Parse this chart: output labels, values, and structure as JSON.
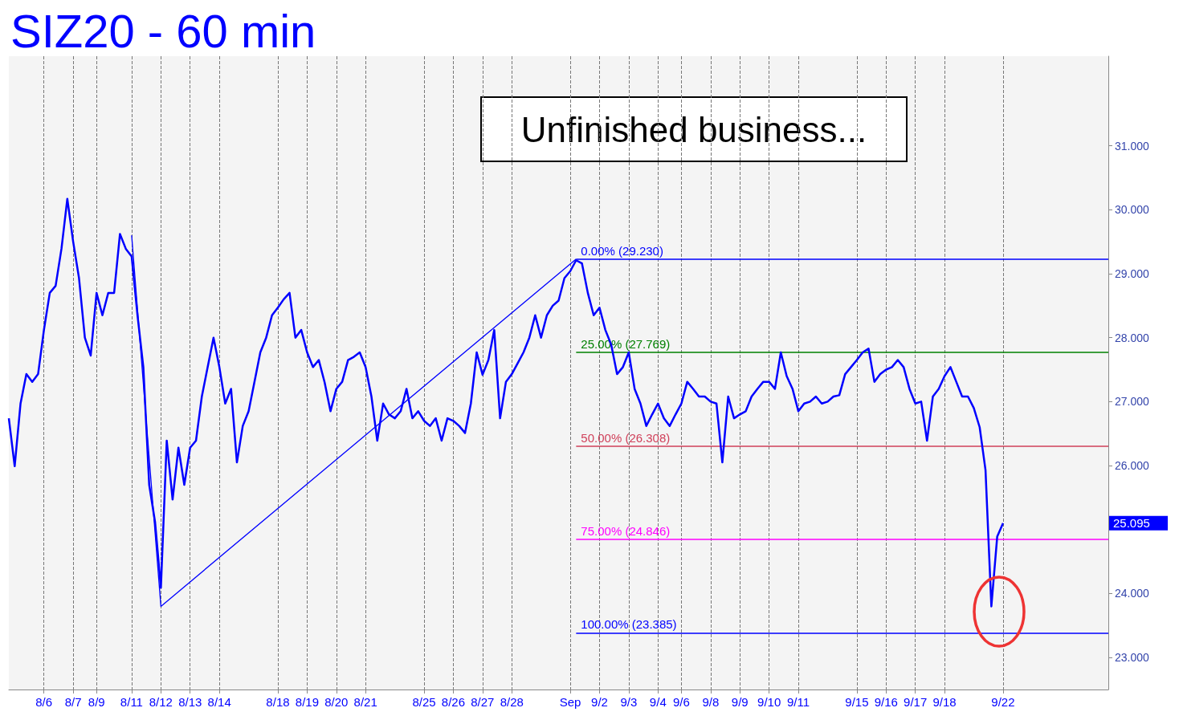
{
  "chart_data": {
    "type": "line",
    "title": "SIZ20 - 60 min",
    "annotations": [
      "Unfinished business...",
      "25.095"
    ],
    "marker": "none",
    "grid": "x",
    "ylim": [
      22.5,
      32.4
    ],
    "yticks": [
      {
        "value": 23,
        "label": "23.000"
      },
      {
        "value": 24,
        "label": "24.000"
      },
      {
        "value": 26,
        "label": "26.000"
      },
      {
        "value": 27,
        "label": "27.000"
      },
      {
        "value": 28,
        "label": "28.000"
      },
      {
        "value": 29,
        "label": "29.000"
      },
      {
        "value": 30,
        "label": "30.000"
      },
      {
        "value": 31,
        "label": "31.000"
      }
    ],
    "categories": [
      null,
      null,
      null,
      null,
      null,
      null,
      "8/6",
      null,
      null,
      null,
      null,
      "8/7",
      null,
      null,
      null,
      "8/9",
      null,
      null,
      null,
      null,
      null,
      "8/11",
      null,
      null,
      null,
      null,
      "8/12",
      null,
      null,
      null,
      null,
      "8/13",
      null,
      null,
      null,
      null,
      "8/14",
      null,
      null,
      null,
      null,
      null,
      null,
      null,
      null,
      null,
      "8/18",
      null,
      null,
      null,
      null,
      "8/19",
      null,
      null,
      null,
      null,
      "8/20",
      null,
      null,
      null,
      null,
      "8/21",
      null,
      null,
      null,
      null,
      null,
      null,
      null,
      null,
      null,
      "8/25",
      null,
      null,
      null,
      null,
      "8/26",
      null,
      null,
      null,
      null,
      "8/27",
      null,
      null,
      null,
      null,
      "8/28",
      null,
      null,
      null,
      null,
      null,
      null,
      null,
      null,
      null,
      "Sep",
      null,
      null,
      null,
      null,
      "9/2",
      null,
      null,
      null,
      null,
      "9/3",
      null,
      null,
      null,
      null,
      "9/4",
      null,
      null,
      null,
      "9/6",
      null,
      null,
      null,
      null,
      "9/8",
      null,
      null,
      null,
      null,
      "9/9",
      null,
      null,
      null,
      null,
      "9/10",
      null,
      null,
      null,
      null,
      "9/11",
      null,
      null,
      null,
      null,
      null,
      null,
      null,
      null,
      null,
      "9/15",
      null,
      null,
      null,
      null,
      "9/16",
      null,
      null,
      null,
      null,
      "9/17",
      null,
      null,
      null,
      null,
      "9/18",
      null,
      null,
      null,
      null,
      null,
      null,
      null,
      null,
      null,
      "9/22",
      null,
      null,
      null,
      null,
      null,
      null,
      null,
      null,
      null,
      null,
      null,
      null,
      null,
      null,
      null,
      null,
      null,
      null
    ],
    "series": [
      {
        "color": "#0000ff",
        "values": [
          26.74,
          25.99,
          26.97,
          27.43,
          27.31,
          27.43,
          28.12,
          28.7,
          28.81,
          29.39,
          30.17,
          29.5,
          28.93,
          28.0,
          27.72,
          28.7,
          28.35,
          28.7,
          28.7,
          29.62,
          29.39,
          29.27,
          28.35,
          27.54,
          25.7,
          25.12,
          24.09,
          26.39,
          25.47,
          26.28,
          25.7,
          26.28,
          26.39,
          27.08,
          27.54,
          28.0,
          27.54,
          26.97,
          27.2,
          26.05,
          26.62,
          26.85,
          27.31,
          27.77,
          28.0,
          28.35,
          28.47,
          28.6,
          28.7,
          28.0,
          28.12,
          27.77,
          27.54,
          27.65,
          27.3,
          26.85,
          27.2,
          27.31,
          27.65,
          27.7,
          27.77,
          27.54,
          27.08,
          26.39,
          26.97,
          26.8,
          26.74,
          26.85,
          27.2,
          26.74,
          26.85,
          26.7,
          26.62,
          26.74,
          26.39,
          26.74,
          26.7,
          26.62,
          26.51,
          26.97,
          27.77,
          27.42,
          27.65,
          28.12,
          26.74,
          27.31,
          27.43,
          27.6,
          27.77,
          28.0,
          28.35,
          28.0,
          28.35,
          28.5,
          28.58,
          28.93,
          29.04,
          29.21,
          29.16,
          28.7,
          28.35,
          28.47,
          28.12,
          27.89,
          27.43,
          27.54,
          27.77,
          27.2,
          26.97,
          26.62,
          26.8,
          26.97,
          26.74,
          26.62,
          26.8,
          26.97,
          27.31,
          27.2,
          27.08,
          27.08,
          27.0,
          26.97,
          26.05,
          27.08,
          26.74,
          26.8,
          26.85,
          27.08,
          27.2,
          27.31,
          27.31,
          27.2,
          27.77,
          27.4,
          27.2,
          26.85,
          26.97,
          27.0,
          27.08,
          26.97,
          27.0,
          27.08,
          27.1,
          27.43,
          27.54,
          27.65,
          27.77,
          27.83,
          27.31,
          27.43,
          27.5,
          27.54,
          27.65,
          27.54,
          27.2,
          26.97,
          27.0,
          26.39,
          27.08,
          27.2,
          27.4,
          27.54,
          27.31,
          27.08,
          27.08,
          26.9,
          26.6,
          25.93,
          23.8,
          24.89,
          25.1,
          null,
          null,
          null,
          null,
          null,
          null,
          null,
          null,
          null,
          null,
          null,
          null,
          null,
          null,
          null,
          null,
          null,
          null
        ]
      },
      {
        "color": "#0000ff",
        "values": [
          null,
          null,
          null,
          null,
          null,
          null,
          null,
          null,
          null,
          null,
          null,
          null,
          null,
          null,
          null,
          null,
          null,
          null,
          null,
          null,
          null,
          29.6,
          null,
          null,
          null,
          null,
          23.8,
          null,
          null,
          null,
          null,
          null,
          null,
          null,
          null,
          null,
          null,
          null,
          null,
          null,
          null,
          null,
          null,
          null,
          null,
          null,
          null,
          null,
          null,
          null,
          null,
          null,
          null,
          null,
          null,
          null,
          null,
          null,
          null,
          null,
          null,
          null,
          null,
          null,
          null,
          null,
          null,
          null,
          null,
          null,
          null,
          null,
          null,
          null,
          null,
          null,
          null,
          null,
          null,
          null,
          null,
          null,
          null,
          null,
          null,
          null,
          null,
          null,
          null,
          null,
          null,
          null,
          null,
          null,
          null,
          null,
          null,
          29.23,
          null,
          null,
          null,
          null,
          null,
          null,
          null,
          null,
          null,
          null,
          null,
          null,
          null,
          null,
          null,
          null,
          null,
          null,
          null,
          null,
          null,
          null,
          null,
          null,
          null,
          null,
          null,
          null,
          null,
          null,
          null,
          null,
          null,
          null,
          null,
          null,
          null,
          null,
          null,
          null,
          null,
          null,
          null,
          null,
          null,
          null,
          null,
          null,
          null,
          null,
          null,
          null,
          null,
          null,
          null,
          null,
          null,
          null,
          null,
          null,
          null,
          null,
          null,
          null,
          null,
          null,
          null,
          null,
          null,
          null,
          null,
          null,
          null,
          null,
          null,
          null,
          null,
          null,
          null,
          null,
          null,
          null,
          null,
          null,
          null,
          null,
          null,
          null,
          null,
          null,
          null
        ]
      }
    ],
    "ref_lines": [
      {
        "axis": "y",
        "value": 29.23,
        "label": "0.00% (29.230)",
        "color": "#0000ff"
      },
      {
        "axis": "y",
        "value": 27.769,
        "label": "25.00% (27.769)",
        "color": "#008000"
      },
      {
        "axis": "y",
        "value": 26.308,
        "label": "50.00% (26.308)",
        "color": "#d0405a"
      },
      {
        "axis": "y",
        "value": 24.846,
        "label": "75.00% (24.846)",
        "color": "#ff00ff"
      },
      {
        "axis": "y",
        "value": 23.385,
        "label": "100.00% (23.385)",
        "color": "#0000ff"
      }
    ]
  }
}
